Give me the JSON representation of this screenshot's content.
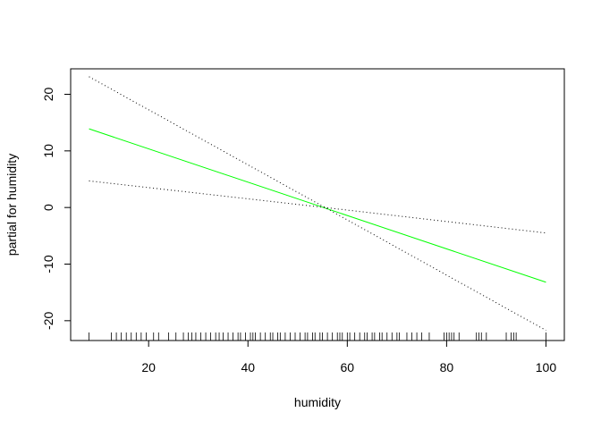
{
  "chart_data": {
    "type": "line",
    "title": "",
    "xlabel": "humidity",
    "ylabel": "partial for humidity",
    "xlim": [
      4.3,
      103.7
    ],
    "ylim": [
      -23.5,
      24.5
    ],
    "x_ticks": [
      20,
      40,
      60,
      80,
      100
    ],
    "y_ticks": [
      -20,
      -10,
      0,
      10,
      20
    ],
    "grid": false,
    "legend": "none",
    "series": [
      {
        "role": "fit",
        "style": "solid",
        "color": "#00ff00",
        "x": [
          8,
          100
        ],
        "y": [
          13.9,
          -13.2
        ]
      },
      {
        "role": "upper",
        "style": "dotted",
        "color": "#000000",
        "x": [
          8,
          55.5,
          100
        ],
        "y": [
          23.1,
          0,
          -21.7
        ]
      },
      {
        "role": "lower",
        "style": "dotted",
        "color": "#000000",
        "x": [
          8,
          55.5,
          100
        ],
        "y": [
          4.7,
          0,
          -4.5
        ]
      }
    ],
    "rug_x": [
      8,
      12.5,
      13.5,
      14.5,
      15.5,
      16.5,
      17.5,
      18.5,
      19.5,
      21,
      22,
      24,
      25.5,
      27,
      28,
      28.7,
      29.5,
      30.5,
      31.5,
      32.5,
      33.5,
      34.2,
      35,
      36,
      37,
      38,
      38.5,
      39.5,
      40.5,
      41,
      41.5,
      42.5,
      43.5,
      44.5,
      45,
      46,
      46.5,
      47.5,
      48.5,
      49.5,
      50.5,
      51.5,
      52,
      53,
      53.5,
      54.5,
      55,
      56,
      57,
      58,
      58.5,
      59,
      60,
      60.5,
      61.5,
      62.5,
      63.5,
      64,
      65,
      65.5,
      66.5,
      67,
      68,
      69,
      70,
      70.5,
      72,
      73,
      74,
      75,
      76.5,
      79.5,
      80,
      80.5,
      81,
      81.5,
      82.5,
      86,
      86.5,
      87,
      88,
      92,
      93,
      93.5,
      94,
      100
    ]
  }
}
